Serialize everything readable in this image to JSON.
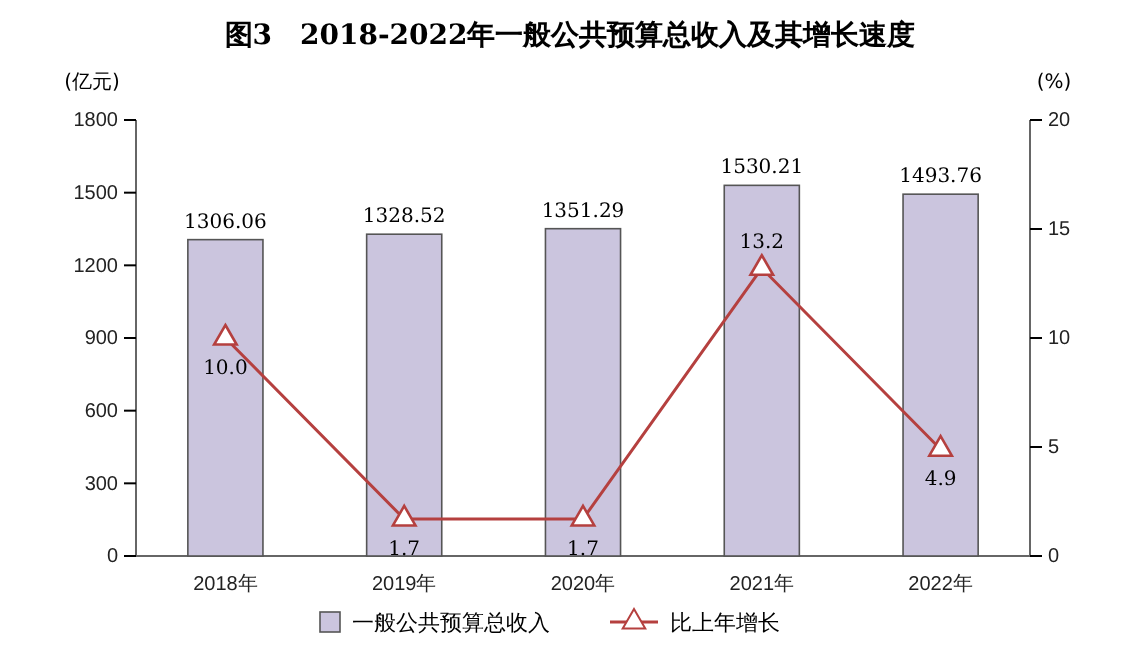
{
  "chart_data": {
    "type": "bar",
    "title": "图3　2018-2022年一般公共预算总收入及其增长速度",
    "categories": [
      "2018年",
      "2019年",
      "2020年",
      "2021年",
      "2022年"
    ],
    "series": [
      {
        "name": "一般公共预算总收入",
        "color": "#cbc5de",
        "values": [
          1306.06,
          1328.52,
          1351.29,
          1530.21,
          1493.76
        ],
        "value_labels": [
          "1306.06",
          "1328.52",
          "1351.29",
          "1530.21",
          "1493.76"
        ]
      },
      {
        "name": "比上年增长",
        "type": "line",
        "axis": "y2",
        "color": "#b5403f",
        "marker": "triangle",
        "values": [
          10.0,
          1.7,
          1.7,
          13.2,
          4.9
        ],
        "value_labels": [
          "10.0",
          "1.7",
          "1.7",
          "13.2",
          "4.9"
        ]
      }
    ],
    "ylabel": "(亿元)",
    "y2label": "(%)",
    "ylim": [
      0,
      1800
    ],
    "yticks": [
      0,
      300,
      600,
      900,
      1200,
      1500,
      1800
    ],
    "y2lim": [
      0,
      20
    ],
    "y2ticks": [
      0,
      5,
      10,
      15,
      20
    ],
    "grid": false,
    "legend": "bottom"
  }
}
